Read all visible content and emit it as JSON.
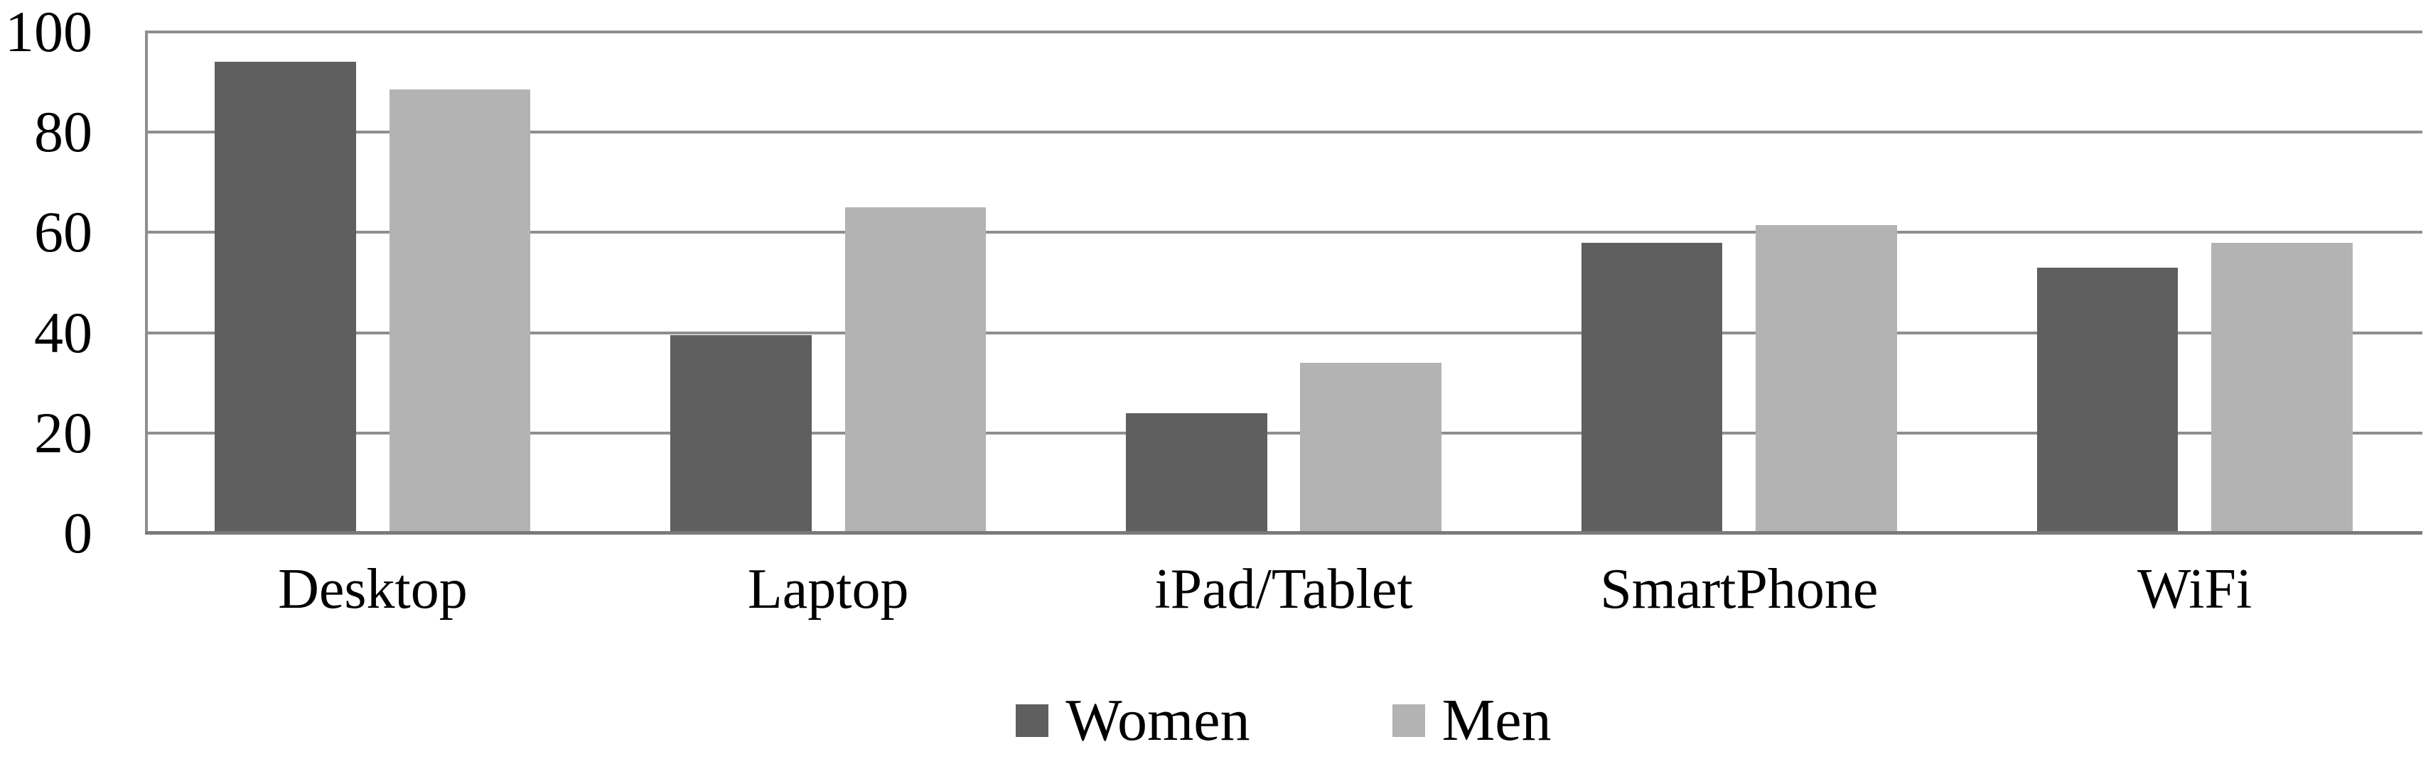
{
  "chart_data": {
    "type": "bar",
    "title": "",
    "categories": [
      "Desktop",
      "Laptop",
      "iPad/Tablet",
      "SmartPhone",
      "WiFi"
    ],
    "series": [
      {
        "name": "Women",
        "color": "#5f5f5f",
        "values": [
          94,
          39.5,
          24,
          58,
          53
        ]
      },
      {
        "name": "Men",
        "color": "#b3b3b3",
        "values": [
          88.5,
          65,
          34,
          61.5,
          58
        ]
      }
    ],
    "xlabel": "",
    "ylabel": "",
    "ylim": [
      0,
      100
    ],
    "yticks": [
      0,
      20,
      40,
      60,
      80,
      100
    ],
    "grid": true,
    "gridline_color": "#8e8e8e",
    "axis_color": "#7a7a7a",
    "plot_border": "top-left-only",
    "legend_position": "bottom-center",
    "background": "#ffffff",
    "text_color": "#000000"
  }
}
